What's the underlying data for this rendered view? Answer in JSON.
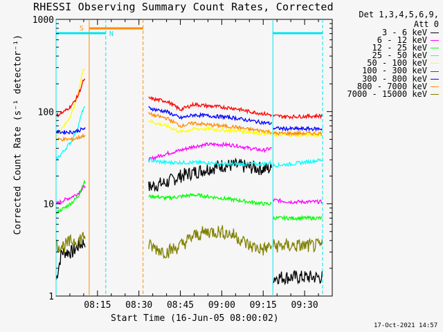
{
  "colors": {
    "background": "#f6f6f6",
    "axis": "#000000",
    "saa": "#ff8c00",
    "night": "#00e5ee"
  },
  "chart_data": {
    "type": "line",
    "title": "RHESSI Observing Summary Count Rates, Corrected",
    "xlabel": "Start Time (16-Jun-05 08:00:02)",
    "ylabel": "Corrected Count Rate (s⁻¹ detector⁻¹)",
    "y_scale": "log",
    "ylim": [
      1,
      1000
    ],
    "xlim_minutes": [
      0,
      100
    ],
    "y_ticks": [
      "1000",
      "100",
      "10",
      "1"
    ],
    "x_ticks": [
      {
        "label": "08:15",
        "minute": 15
      },
      {
        "label": "08:30",
        "minute": 30
      },
      {
        "label": "08:45",
        "minute": 45
      },
      {
        "label": "09:00",
        "minute": 60
      },
      {
        "label": "09:15",
        "minute": 75
      },
      {
        "label": "09:30",
        "minute": 90
      }
    ],
    "legend_header": [
      "Det 1,3,4,5,6,9,",
      "Att 0"
    ],
    "flags": {
      "saa_label": "S",
      "night_label": "N",
      "saa_start": 12,
      "saa_end": 31.5,
      "night_end": 18,
      "night_start": 78.5,
      "plot_end": 96.5
    },
    "segments": [
      [
        0,
        10.5
      ],
      [
        33.5,
        78
      ],
      [
        78.6,
        96.5
      ]
    ],
    "series": [
      {
        "name": "3 - 6 keV",
        "color": "#000000",
        "points": [
          [
            0,
            1.5
          ],
          [
            2,
            3
          ],
          [
            4,
            3
          ],
          [
            6,
            3
          ],
          [
            8,
            3.5
          ],
          [
            10,
            3.8
          ],
          [
            33.5,
            15
          ],
          [
            36,
            16
          ],
          [
            40,
            17
          ],
          [
            45,
            20
          ],
          [
            50,
            22
          ],
          [
            55,
            24
          ],
          [
            60,
            26
          ],
          [
            65,
            26
          ],
          [
            70,
            25
          ],
          [
            75,
            24
          ],
          [
            78,
            24
          ],
          [
            78.6,
            1.6
          ],
          [
            96.5,
            1.6
          ]
        ],
        "spiky": true
      },
      {
        "name": "6 - 12 keV",
        "color": "#ff00ff",
        "points": [
          [
            0,
            10
          ],
          [
            3,
            11
          ],
          [
            6,
            12
          ],
          [
            8,
            13
          ],
          [
            10,
            15
          ],
          [
            33.5,
            30
          ],
          [
            36,
            32
          ],
          [
            40,
            35
          ],
          [
            45,
            38
          ],
          [
            50,
            42
          ],
          [
            55,
            44
          ],
          [
            60,
            44
          ],
          [
            65,
            43
          ],
          [
            70,
            40
          ],
          [
            75,
            38
          ],
          [
            78,
            40
          ],
          [
            78.6,
            11
          ],
          [
            85,
            10.5
          ],
          [
            96.5,
            10.5
          ]
        ]
      },
      {
        "name": "12 - 25 keV",
        "color": "#00ff00",
        "points": [
          [
            0,
            8
          ],
          [
            3,
            9
          ],
          [
            6,
            10.5
          ],
          [
            8,
            12
          ],
          [
            10,
            17
          ],
          [
            33.5,
            12
          ],
          [
            36,
            12
          ],
          [
            40,
            11.5
          ],
          [
            45,
            12
          ],
          [
            50,
            12.5
          ],
          [
            55,
            12
          ],
          [
            60,
            11.5
          ],
          [
            65,
            11
          ],
          [
            70,
            10.5
          ],
          [
            75,
            10
          ],
          [
            78,
            10
          ],
          [
            78.6,
            7
          ],
          [
            96.5,
            7
          ]
        ]
      },
      {
        "name": "25 - 50 keV",
        "color": "#00ffff",
        "points": [
          [
            0,
            30
          ],
          [
            3,
            38
          ],
          [
            6,
            50
          ],
          [
            8,
            70
          ],
          [
            10,
            110
          ],
          [
            33.5,
            30
          ],
          [
            36,
            29
          ],
          [
            40,
            28
          ],
          [
            45,
            28
          ],
          [
            50,
            28
          ],
          [
            55,
            28
          ],
          [
            60,
            27
          ],
          [
            65,
            27
          ],
          [
            70,
            27
          ],
          [
            75,
            27
          ],
          [
            78,
            28
          ],
          [
            78.6,
            26
          ],
          [
            85,
            27
          ],
          [
            96.5,
            30
          ]
        ]
      },
      {
        "name": "50 - 100 keV",
        "color": "#ffff00",
        "points": [
          [
            0,
            55
          ],
          [
            3,
            70
          ],
          [
            6,
            100
          ],
          [
            8,
            160
          ],
          [
            10,
            300
          ],
          [
            33.5,
            80
          ],
          [
            36,
            75
          ],
          [
            40,
            70
          ],
          [
            45,
            60
          ],
          [
            50,
            65
          ],
          [
            55,
            65
          ],
          [
            60,
            63
          ],
          [
            65,
            62
          ],
          [
            70,
            60
          ],
          [
            75,
            58
          ],
          [
            78,
            57
          ],
          [
            78.6,
            56
          ],
          [
            85,
            56
          ],
          [
            96.5,
            56
          ]
        ]
      },
      {
        "name": "100 - 300 keV",
        "color": "#ff0000",
        "points": [
          [
            0,
            90
          ],
          [
            3,
            100
          ],
          [
            6,
            120
          ],
          [
            8,
            150
          ],
          [
            10,
            220
          ],
          [
            33.5,
            140
          ],
          [
            36,
            135
          ],
          [
            40,
            130
          ],
          [
            45,
            105
          ],
          [
            50,
            120
          ],
          [
            55,
            115
          ],
          [
            60,
            112
          ],
          [
            65,
            108
          ],
          [
            70,
            100
          ],
          [
            75,
            95
          ],
          [
            78,
            92
          ],
          [
            78.6,
            90
          ],
          [
            85,
            88
          ],
          [
            96.5,
            90
          ]
        ]
      },
      {
        "name": "300 - 800 keV",
        "color": "#0000ff",
        "points": [
          [
            0,
            60
          ],
          [
            3,
            60
          ],
          [
            6,
            60
          ],
          [
            8,
            62
          ],
          [
            10,
            65
          ],
          [
            33.5,
            110
          ],
          [
            36,
            105
          ],
          [
            40,
            100
          ],
          [
            45,
            85
          ],
          [
            50,
            92
          ],
          [
            55,
            90
          ],
          [
            60,
            88
          ],
          [
            65,
            85
          ],
          [
            70,
            80
          ],
          [
            75,
            76
          ],
          [
            78,
            74
          ],
          [
            78.6,
            66
          ],
          [
            85,
            65
          ],
          [
            96.5,
            65
          ]
        ]
      },
      {
        "name": "800 - 7000 keV",
        "color": "#ff8c00",
        "points": [
          [
            0,
            50
          ],
          [
            3,
            50
          ],
          [
            6,
            50
          ],
          [
            8,
            52
          ],
          [
            10,
            55
          ],
          [
            33.5,
            95
          ],
          [
            36,
            90
          ],
          [
            40,
            85
          ],
          [
            45,
            70
          ],
          [
            50,
            75
          ],
          [
            55,
            72
          ],
          [
            60,
            70
          ],
          [
            65,
            68
          ],
          [
            70,
            64
          ],
          [
            75,
            62
          ],
          [
            78,
            60
          ],
          [
            78.6,
            58
          ],
          [
            85,
            58
          ],
          [
            96.5,
            58
          ]
        ]
      },
      {
        "name": "7000 - 15000 keV",
        "color": "#808000",
        "points": [
          [
            0,
            3.5
          ],
          [
            3,
            3.5
          ],
          [
            6,
            4
          ],
          [
            8,
            4
          ],
          [
            10,
            4.5
          ],
          [
            33.5,
            3.5
          ],
          [
            36,
            3.3
          ],
          [
            40,
            3
          ],
          [
            45,
            3.5
          ],
          [
            50,
            4.5
          ],
          [
            55,
            5
          ],
          [
            60,
            5
          ],
          [
            65,
            4.5
          ],
          [
            70,
            3.5
          ],
          [
            75,
            3.2
          ],
          [
            78,
            3.5
          ],
          [
            78.6,
            3.5
          ],
          [
            85,
            3.5
          ],
          [
            96.5,
            3.5
          ]
        ],
        "spiky": true
      }
    ]
  },
  "footer": {
    "timestamp": "17-Oct-2021 14:57"
  }
}
